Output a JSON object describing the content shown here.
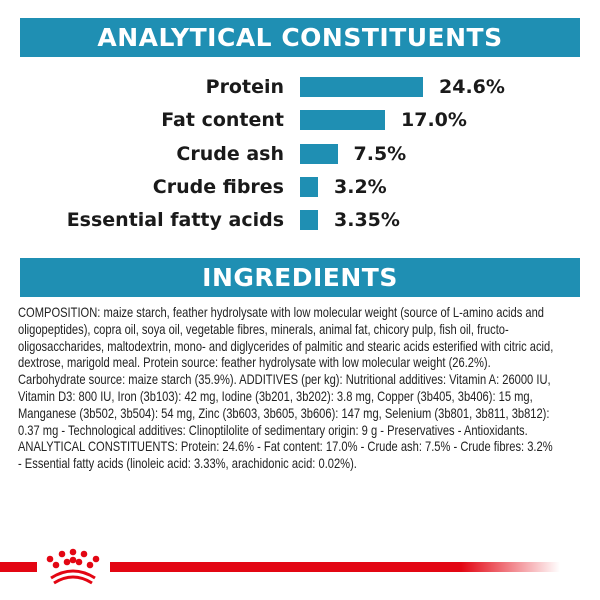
{
  "sections": {
    "analytical_title": "ANALYTICAL CONSTITUENTS",
    "ingredients_title": "INGREDIENTS"
  },
  "chart_data": {
    "type": "bar",
    "orientation": "horizontal",
    "categories": [
      "Protein",
      "Fat content",
      "Crude ash",
      "Crude fibres",
      "Essential fatty acids"
    ],
    "values": [
      24.6,
      17.0,
      7.5,
      3.2,
      3.35
    ],
    "value_labels": [
      "24.6%",
      "17.0%",
      "7.5%",
      "3.2%",
      "3.35%"
    ],
    "unit": "%",
    "bar_color": "#1f8fb3",
    "grid": false,
    "axes_visible": false
  },
  "ingredients_text": "COMPOSITION: maize starch, feather hydrolysate with low molecular weight (source of L-amino acids and oligopeptides), copra oil, soya oil, vegetable fibres, minerals, animal fat, chicory pulp, fish oil, fructo-oligosaccharides, maltodextrin, mono- and diglycerides of palmitic and stearic acids esterified with citric acid, dextrose, marigold meal. Protein source: feather hydrolysate with low molecular weight (26.2%). Carbohydrate source: maize starch (35.9%). ADDITIVES (per kg): Nutritional additives: Vitamin A: 26000 IU, Vitamin D3: 800 IU, Iron (3b103): 42 mg, Iodine (3b201, 3b202): 3.8 mg, Copper (3b405, 3b406): 15 mg, Manganese (3b502, 3b504): 54 mg, Zinc (3b603, 3b605, 3b606): 147 mg, Selenium (3b801, 3b811, 3b812): 0.37 mg - Technological additives: Clinoptilolite of sedimentary origin: 9 g - Preservatives - Antioxidants. ANALYTICAL CONSTITUENTS: Protein: 24.6% - Fat content: 17.0% - Crude ash: 7.5% - Crude fibres: 3.2% - Essential fatty acids (linoleic acid: 3.33%, arachidonic acid: 0.02%).",
  "brand": {
    "logo": "royal-canin-crown",
    "color": "#e30613"
  },
  "colors": {
    "header_band": "#1f8fb3"
  }
}
